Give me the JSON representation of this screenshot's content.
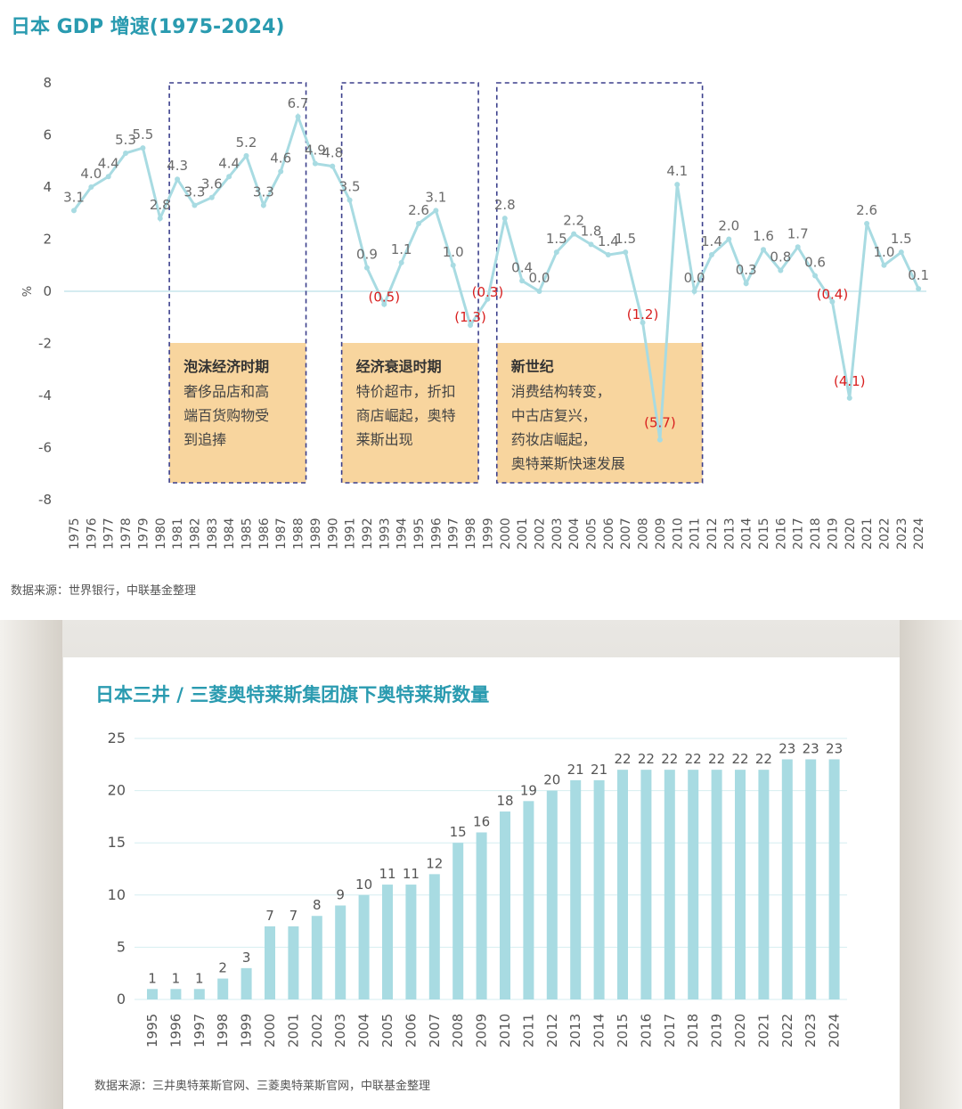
{
  "colors": {
    "line": "#a8dbe2",
    "bar": "#a8dbe2",
    "title": "#2a9bb0",
    "negative_label": "#d81e1e",
    "label": "#6b6b6b",
    "box_fill": "#f8d59e",
    "box_border": "#3b3f8c"
  },
  "chart1": {
    "title": "日本 GDP 增速(1975-2024)",
    "source": "数据来源：世界银行，中联基金整理",
    "ylabel": "%",
    "boxes": [
      {
        "title": "泡沫经济时期",
        "lines": [
          "奢侈品店和高",
          "端百货购物受",
          "到追捧"
        ]
      },
      {
        "title": "经济衰退时期",
        "lines": [
          "特价超市，折扣",
          "商店崛起，奥特",
          "莱斯出现"
        ]
      },
      {
        "title": "新世纪",
        "lines": [
          "消费结构转变，",
          "中古店复兴，",
          "药妆店崛起，",
          "奥特莱斯快速发展"
        ]
      }
    ]
  },
  "chart2": {
    "title": "日本三井 / 三菱奥特莱斯集团旗下奥特莱斯数量",
    "source": "数据来源：三井奥特莱斯官网、三菱奥特莱斯官网，中联基金整理"
  },
  "chart_data": [
    {
      "type": "line",
      "title": "日本 GDP 增速(1975-2024)",
      "ylabel": "%",
      "ylim": [
        -8,
        8
      ],
      "yticks": [
        "8",
        "6",
        "4",
        "2",
        "0",
        "-2",
        "-4",
        "-6",
        "-8"
      ],
      "x": [
        "1975",
        "1976",
        "1977",
        "1978",
        "1979",
        "1980",
        "1981",
        "1982",
        "1983",
        "1984",
        "1985",
        "1986",
        "1987",
        "1988",
        "1989",
        "1990",
        "1991",
        "1992",
        "1993",
        "1994",
        "1995",
        "1996",
        "1997",
        "1998",
        "1999",
        "2000",
        "2001",
        "2002",
        "2003",
        "2004",
        "2005",
        "2006",
        "2007",
        "2008",
        "2009",
        "2010",
        "2011",
        "2012",
        "2013",
        "2014",
        "2015",
        "2016",
        "2017",
        "2018",
        "2019",
        "2020",
        "2021",
        "2022",
        "2023",
        "2024"
      ],
      "values": [
        3.1,
        4.0,
        4.4,
        5.3,
        5.5,
        2.8,
        4.3,
        3.3,
        3.6,
        4.4,
        5.2,
        3.3,
        4.6,
        6.7,
        4.9,
        4.8,
        3.5,
        0.9,
        -0.5,
        1.1,
        2.6,
        3.1,
        1.0,
        -1.3,
        -0.3,
        2.8,
        0.4,
        0.0,
        1.5,
        2.2,
        1.8,
        1.4,
        1.5,
        -1.2,
        -5.7,
        4.1,
        0.0,
        1.4,
        2.0,
        0.3,
        1.6,
        0.8,
        1.7,
        0.6,
        -0.4,
        -4.1,
        2.6,
        1.0,
        1.5,
        0.1
      ],
      "labels": [
        "3.1",
        "4.0",
        "4.4",
        "5.3",
        "5.5",
        "2.8",
        "4.3",
        "3.3",
        "3.6",
        "4.4",
        "5.2",
        "3.3",
        "4.6",
        "6.7",
        "4.9",
        "4.8",
        "3.5",
        "0.9",
        "(0.5)",
        "1.1",
        "2.6",
        "3.1",
        "1.0",
        "(1.3)",
        "(0.3)",
        "2.8",
        "0.4",
        "0.0",
        "1.5",
        "2.2",
        "1.8",
        "1.4",
        "1.5",
        "(1.2)",
        "(5.7)",
        "4.1",
        "0.0",
        "1.4",
        "2.0",
        "0.3",
        "1.6",
        "0.8",
        "1.7",
        "0.6",
        "(0.4)",
        "(4.1)",
        "2.6",
        "1.0",
        "1.5",
        "0.1"
      ],
      "highlight_ranges": [
        [
          "1981",
          "1988"
        ],
        [
          "1991",
          "1998"
        ],
        [
          "2000",
          "2011"
        ]
      ]
    },
    {
      "type": "bar",
      "title": "日本三井 / 三菱奥特莱斯集团旗下奥特莱斯数量",
      "ylim": [
        0,
        25
      ],
      "yticks": [
        "25",
        "20",
        "15",
        "10",
        "5",
        "0"
      ],
      "categories": [
        "1995",
        "1996",
        "1997",
        "1998",
        "1999",
        "2000",
        "2001",
        "2002",
        "2003",
        "2004",
        "2005",
        "2006",
        "2007",
        "2008",
        "2009",
        "2010",
        "2011",
        "2012",
        "2013",
        "2014",
        "2015",
        "2016",
        "2017",
        "2018",
        "2019",
        "2020",
        "2021",
        "2022",
        "2023",
        "2024"
      ],
      "values": [
        1,
        1,
        1,
        2,
        3,
        7,
        7,
        8,
        9,
        10,
        11,
        11,
        12,
        15,
        16,
        18,
        19,
        20,
        21,
        21,
        22,
        22,
        22,
        22,
        22,
        22,
        22,
        23,
        23,
        23
      ]
    }
  ]
}
